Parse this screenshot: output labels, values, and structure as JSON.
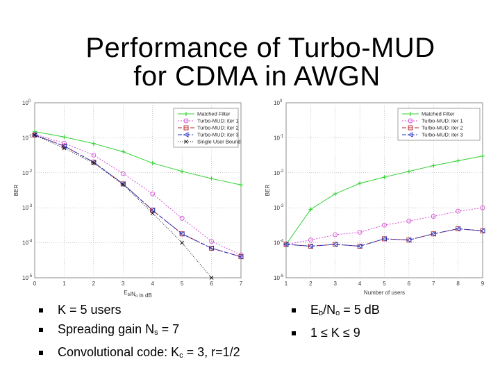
{
  "title": {
    "line1": "Performance of Turbo-MUD",
    "line2": "for CDMA in AWGN"
  },
  "colors": {
    "matched": "#2fd12f",
    "turbo1": "#d64fd6",
    "turbo2": "#b0202a",
    "turbo3": "#2030c0",
    "single": "#111111",
    "grid": "#9a9a9a"
  },
  "chart_data": [
    {
      "type": "line",
      "xlabel_main": "E",
      "xlabel_sub1": "b",
      "xlabel_mid": "/N",
      "xlabel_sub2": "o",
      "xlabel_tail": " in dB",
      "ylabel": "BER",
      "xlim": [
        0,
        7
      ],
      "ylim": [
        1e-05,
        1
      ],
      "yscale": "log",
      "xticks": [
        "0",
        "1",
        "2",
        "3",
        "4",
        "5",
        "6",
        "7"
      ],
      "ytick_base": "10",
      "ytick_exps": [
        "0",
        "-1",
        "-2",
        "-3",
        "-4",
        "-5"
      ],
      "legend_position": "top-right",
      "series": [
        {
          "name": "Matched Filter",
          "key": "matched",
          "marker": "plus",
          "dash": "",
          "x": [
            0,
            1,
            2,
            3,
            4,
            5,
            6,
            7
          ],
          "y": [
            0.15,
            0.105,
            0.068,
            0.04,
            0.019,
            0.011,
            0.0068,
            0.0045
          ]
        },
        {
          "name": "Turbo-MUD: iter 1",
          "key": "turbo1",
          "marker": "circle",
          "dash": "2,2",
          "x": [
            0,
            1,
            2,
            3,
            4,
            5,
            6,
            7
          ],
          "y": [
            0.125,
            0.07,
            0.032,
            0.0095,
            0.0025,
            0.0005,
            0.00011,
            4.5e-05
          ]
        },
        {
          "name": "Turbo-MUD: iter 2",
          "key": "turbo2",
          "marker": "square",
          "dash": "6,3",
          "x": [
            0,
            1,
            2,
            3,
            4,
            5,
            6,
            7
          ],
          "y": [
            0.12,
            0.058,
            0.02,
            0.0048,
            0.00085,
            0.00018,
            7e-05,
            4e-05
          ]
        },
        {
          "name": "Turbo-MUD: iter 3",
          "key": "turbo3",
          "marker": "triangle-left",
          "dash": "6,2,2,2",
          "x": [
            0,
            1,
            2,
            3,
            4,
            5,
            6,
            7
          ],
          "y": [
            0.12,
            0.058,
            0.02,
            0.0048,
            0.00085,
            0.00018,
            7e-05,
            4e-05
          ]
        },
        {
          "name": "Single User Bound",
          "key": "single",
          "marker": "x",
          "dash": "1,2",
          "x": [
            0,
            1,
            2,
            3,
            4,
            5,
            6
          ],
          "y": [
            0.12,
            0.05,
            0.019,
            0.0046,
            0.0007,
            0.0001,
            1e-05
          ]
        }
      ]
    },
    {
      "type": "line",
      "xlabel": "Number of users",
      "ylabel": "BER",
      "xlim": [
        1,
        9
      ],
      "ylim": [
        1e-05,
        1
      ],
      "yscale": "log",
      "xticks": [
        "1",
        "2",
        "3",
        "4",
        "5",
        "6",
        "7",
        "8",
        "9"
      ],
      "ytick_base": "10",
      "ytick_exps": [
        "0",
        "-1",
        "-2",
        "-3",
        "-4",
        "-5"
      ],
      "legend_position": "top-right",
      "series": [
        {
          "name": "Matched Filter",
          "key": "matched",
          "marker": "plus",
          "dash": "",
          "x": [
            1,
            2,
            3,
            4,
            5,
            6,
            7,
            8,
            9
          ],
          "y": [
            9e-05,
            0.0009,
            0.0025,
            0.005,
            0.0075,
            0.011,
            0.016,
            0.022,
            0.03
          ]
        },
        {
          "name": "Turbo-MUD: iter 1",
          "key": "turbo1",
          "marker": "circle",
          "dash": "2,2",
          "x": [
            1,
            2,
            3,
            4,
            5,
            6,
            7,
            8,
            9
          ],
          "y": [
            9e-05,
            0.00012,
            0.00017,
            0.0002,
            0.00032,
            0.00042,
            0.00057,
            0.0008,
            0.001
          ]
        },
        {
          "name": "Turbo-MUD: iter 2",
          "key": "turbo2",
          "marker": "square",
          "dash": "6,3",
          "x": [
            1,
            2,
            3,
            4,
            5,
            6,
            7,
            8,
            9
          ],
          "y": [
            9e-05,
            8e-05,
            9e-05,
            8e-05,
            0.00013,
            0.00012,
            0.00018,
            0.00025,
            0.00022
          ]
        },
        {
          "name": "Turbo-MUD: iter 3",
          "key": "turbo3",
          "marker": "triangle-left",
          "dash": "6,2,2,2",
          "x": [
            1,
            2,
            3,
            4,
            5,
            6,
            7,
            8,
            9
          ],
          "y": [
            9e-05,
            8e-05,
            9e-05,
            8e-05,
            0.00013,
            0.00012,
            0.00018,
            0.00025,
            0.00022
          ]
        }
      ]
    }
  ],
  "bullets_left": [
    {
      "pre": "K = 5 users",
      "sub": "",
      "post": ""
    },
    {
      "pre": "Spreading gain N",
      "sub": "s",
      "post": " = 7"
    },
    {
      "pre": "Convolutional code: K",
      "sub": "c",
      "post": " = 3, r=1/2"
    }
  ],
  "bullets_right": [
    {
      "pre": "E",
      "sub": "b",
      "mid": "/N",
      "sub2": "o",
      "post": " = 5 dB"
    },
    {
      "plain": "1 ≤ K ≤ 9"
    }
  ]
}
